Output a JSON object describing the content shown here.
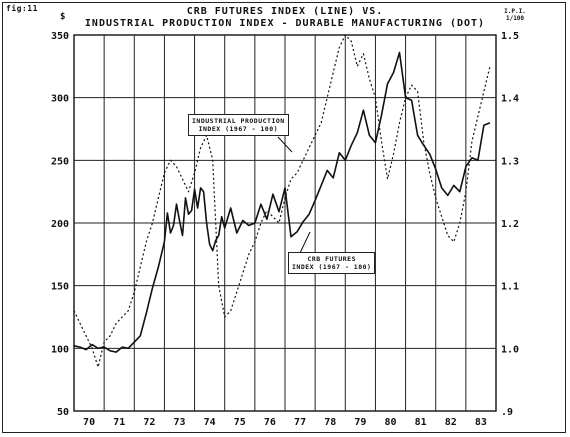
{
  "figure": {
    "label": "fig:11",
    "title_line1": "CRB FUTURES INDEX (LINE) VS.",
    "title_line2": "INDUSTRIAL PRODUCTION INDEX - DURABLE MANUFACTURING (DOT)",
    "left_unit": "$",
    "right_unit_line1": "I.P.I.",
    "right_unit_line2": "1/100"
  },
  "annotations": {
    "ip_line1": "INDUSTRIAL PRODUCTION",
    "ip_line2": "INDEX (1967 - 100)",
    "crb_line1": "CRB FUTURES",
    "crb_line2": "INDEX (1967 - 100)"
  },
  "chart_data": {
    "type": "line",
    "title": "CRB FUTURES INDEX (LINE) VS. INDUSTRIAL PRODUCTION INDEX - DURABLE MANUFACTURING (DOT)",
    "xlabel": "",
    "ylabel": "$",
    "y2label": "I.P.I. 1/100",
    "x_ticks": [
      "70",
      "71",
      "72",
      "73",
      "74",
      "75",
      "76",
      "77",
      "78",
      "79",
      "80",
      "81",
      "82",
      "83"
    ],
    "xlim": [
      1970,
      1984
    ],
    "ylim": [
      50,
      350
    ],
    "y_ticks": [
      50,
      100,
      150,
      200,
      250,
      300,
      350
    ],
    "y2lim": [
      0.9,
      1.5
    ],
    "y2_ticks": [
      ".9",
      "1.0",
      "1.1",
      "1.2",
      "1.3",
      "1.4",
      "1.5"
    ],
    "grid": true,
    "series": [
      {
        "name": "CRB FUTURES INDEX (1967 - 100)",
        "style": "solid",
        "axis": "left",
        "x": [
          1970.0,
          1970.2,
          1970.4,
          1970.6,
          1970.8,
          1971.0,
          1971.2,
          1971.4,
          1971.6,
          1971.8,
          1972.0,
          1972.2,
          1972.4,
          1972.6,
          1972.8,
          1973.0,
          1973.1,
          1973.2,
          1973.3,
          1973.4,
          1973.5,
          1973.6,
          1973.7,
          1973.8,
          1973.9,
          1974.0,
          1974.1,
          1974.2,
          1974.3,
          1974.4,
          1974.5,
          1974.6,
          1974.7,
          1974.8,
          1974.9,
          1975.0,
          1975.2,
          1975.4,
          1975.6,
          1975.8,
          1976.0,
          1976.2,
          1976.4,
          1976.6,
          1976.8,
          1977.0,
          1977.2,
          1977.4,
          1977.6,
          1977.8,
          1978.0,
          1978.2,
          1978.4,
          1978.6,
          1978.8,
          1979.0,
          1979.2,
          1979.4,
          1979.6,
          1979.8,
          1980.0,
          1980.2,
          1980.4,
          1980.6,
          1980.8,
          1981.0,
          1981.2,
          1981.4,
          1981.6,
          1981.8,
          1982.0,
          1982.2,
          1982.4,
          1982.6,
          1982.8,
          1983.0,
          1983.2,
          1983.4,
          1983.6,
          1983.8
        ],
        "values": [
          102,
          101,
          99,
          103,
          100,
          101,
          98,
          97,
          101,
          100,
          105,
          110,
          128,
          148,
          165,
          185,
          208,
          192,
          198,
          215,
          202,
          190,
          220,
          207,
          210,
          227,
          212,
          228,
          225,
          200,
          183,
          178,
          186,
          190,
          205,
          196,
          212,
          192,
          202,
          198,
          200,
          215,
          203,
          223,
          209,
          228,
          189,
          193,
          201,
          207,
          218,
          230,
          242,
          236,
          256,
          250,
          262,
          272,
          290,
          270,
          264,
          286,
          311,
          320,
          336,
          300,
          298,
          270,
          262,
          255,
          243,
          228,
          222,
          230,
          225,
          245,
          252,
          250,
          278,
          280
        ]
      },
      {
        "name": "INDUSTRIAL PRODUCTION INDEX (1967 - 100)",
        "style": "dotted",
        "axis": "right",
        "x": [
          1970.0,
          1970.2,
          1970.4,
          1970.6,
          1970.8,
          1971.0,
          1971.2,
          1971.4,
          1971.6,
          1971.8,
          1972.0,
          1972.2,
          1972.4,
          1972.6,
          1972.8,
          1973.0,
          1973.2,
          1973.4,
          1973.6,
          1973.8,
          1974.0,
          1974.2,
          1974.4,
          1974.6,
          1974.8,
          1975.0,
          1975.2,
          1975.4,
          1975.6,
          1975.8,
          1976.0,
          1976.2,
          1976.4,
          1976.6,
          1976.8,
          1977.0,
          1977.2,
          1977.4,
          1977.6,
          1977.8,
          1978.0,
          1978.2,
          1978.4,
          1978.6,
          1978.8,
          1979.0,
          1979.2,
          1979.4,
          1979.6,
          1979.8,
          1980.0,
          1980.2,
          1980.4,
          1980.6,
          1980.8,
          1981.0,
          1981.2,
          1981.4,
          1981.6,
          1981.8,
          1982.0,
          1982.2,
          1982.4,
          1982.6,
          1982.8,
          1983.0,
          1983.2,
          1983.4,
          1983.6,
          1983.8
        ],
        "values": [
          1.06,
          1.04,
          1.02,
          1.0,
          0.97,
          1.01,
          1.02,
          1.04,
          1.05,
          1.06,
          1.09,
          1.13,
          1.17,
          1.2,
          1.24,
          1.28,
          1.3,
          1.29,
          1.27,
          1.25,
          1.28,
          1.32,
          1.34,
          1.3,
          1.1,
          1.05,
          1.06,
          1.09,
          1.12,
          1.15,
          1.17,
          1.2,
          1.22,
          1.21,
          1.2,
          1.24,
          1.27,
          1.28,
          1.3,
          1.32,
          1.34,
          1.36,
          1.4,
          1.44,
          1.48,
          1.5,
          1.49,
          1.45,
          1.47,
          1.43,
          1.4,
          1.33,
          1.27,
          1.31,
          1.36,
          1.4,
          1.42,
          1.41,
          1.33,
          1.28,
          1.24,
          1.21,
          1.18,
          1.17,
          1.2,
          1.25,
          1.33,
          1.37,
          1.41,
          1.45
        ]
      }
    ]
  }
}
